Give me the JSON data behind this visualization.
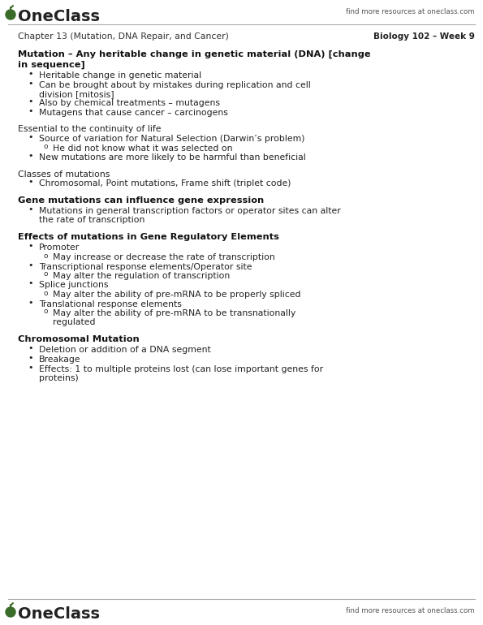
{
  "bg_color": "#ffffff",
  "logo_color": "#3a6b28",
  "logo_text": "OneClass",
  "top_right_text": "find more resources at oneclass.com",
  "chapter_line": "Chapter 13 (Mutation, DNA Repair, and Cancer)",
  "course_line": "Biology 102 – Week 9",
  "bottom_logo_text": "OneClass",
  "bottom_right_text": "find more resources at oneclass.com",
  "content": [
    {
      "type": "heading",
      "text": "Mutation – Any heritable change in genetic material (DNA) [change\nin sequence]"
    },
    {
      "type": "bullet1",
      "text": "Heritable change in genetic material"
    },
    {
      "type": "bullet1",
      "text": "Can be brought about by mistakes during replication and cell\ndivision [mitosis]"
    },
    {
      "type": "bullet1",
      "text": "Also by chemical treatments – mutagens"
    },
    {
      "type": "bullet1",
      "text": "Mutagens that cause cancer – carcinogens"
    },
    {
      "type": "spacer"
    },
    {
      "type": "normal",
      "text": "Essential to the continuity of life"
    },
    {
      "type": "bullet1",
      "text": "Source of variation for Natural Selection (Darwin’s problem)"
    },
    {
      "type": "bullet2",
      "text": "He did not know what it was selected on"
    },
    {
      "type": "bullet1",
      "text": "New mutations are more likely to be harmful than beneficial"
    },
    {
      "type": "spacer"
    },
    {
      "type": "normal",
      "text": "Classes of mutations"
    },
    {
      "type": "bullet1",
      "text": "Chromosomal, Point mutations, Frame shift (triplet code)"
    },
    {
      "type": "spacer"
    },
    {
      "type": "heading",
      "text": "Gene mutations can influence gene expression"
    },
    {
      "type": "bullet1",
      "text": "Mutations in general transcription factors or operator sites can alter\nthe rate of transcription"
    },
    {
      "type": "spacer"
    },
    {
      "type": "heading",
      "text": "Effects of mutations in Gene Regulatory Elements"
    },
    {
      "type": "bullet1",
      "text": "Promoter"
    },
    {
      "type": "bullet2",
      "text": "May increase or decrease the rate of transcription"
    },
    {
      "type": "bullet1",
      "text": "Transcriptional response elements/Operator site"
    },
    {
      "type": "bullet2",
      "text": "May alter the regulation of transcription"
    },
    {
      "type": "bullet1",
      "text": "Splice junctions"
    },
    {
      "type": "bullet2",
      "text": "May alter the ability of pre-mRNA to be properly spliced"
    },
    {
      "type": "bullet1",
      "text": "Translational response elements"
    },
    {
      "type": "bullet2",
      "text": "May alter the ability of pre-mRNA to be transnationally\nregulated"
    },
    {
      "type": "spacer"
    },
    {
      "type": "heading",
      "text": "Chromosomal Mutation"
    },
    {
      "type": "bullet1",
      "text": "Deletion or addition of a DNA segment"
    },
    {
      "type": "bullet1",
      "text": "Breakage"
    },
    {
      "type": "bullet1",
      "text": "Effects: 1 to multiple proteins lost (can lose important genes for\nproteins)"
    }
  ]
}
